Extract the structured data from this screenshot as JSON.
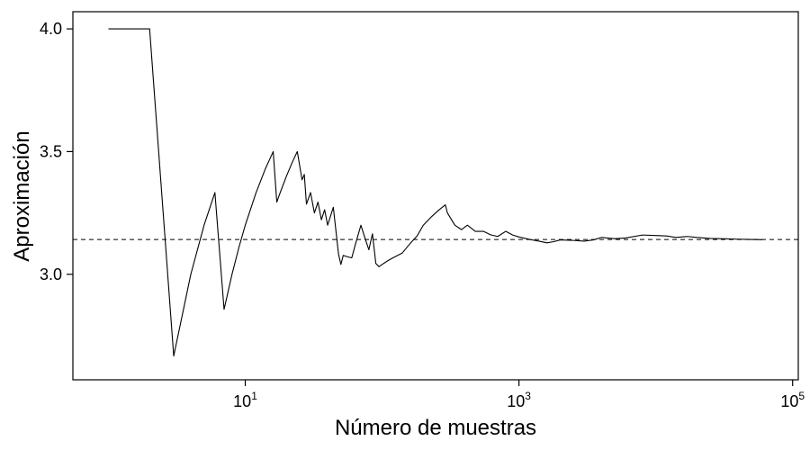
{
  "chart_data": {
    "type": "line",
    "xlabel": "Número de muestras",
    "ylabel": "Aproximación",
    "x_scale": "log10",
    "xlim": [
      0.55,
      110000
    ],
    "ylim": [
      2.57,
      4.07
    ],
    "x_ticks": [
      {
        "value": 10,
        "base": "10",
        "exp": "1"
      },
      {
        "value": 1000,
        "base": "10",
        "exp": "3"
      },
      {
        "value": 100000,
        "base": "10",
        "exp": "5"
      }
    ],
    "y_ticks": [
      {
        "value": 3.0,
        "label": "3.0"
      },
      {
        "value": 3.5,
        "label": "3.5"
      },
      {
        "value": 4.0,
        "label": "4.0"
      }
    ],
    "reference_line": {
      "y": 3.14159,
      "style": "dashed"
    },
    "series": [
      {
        "x": [
          1,
          2,
          3,
          4,
          5,
          6,
          7,
          8,
          9,
          10,
          12,
          14,
          16,
          17,
          18,
          20,
          22,
          24,
          26,
          27,
          28,
          30,
          32,
          34,
          36,
          38,
          40,
          44,
          48,
          50,
          52,
          56,
          60,
          64,
          70,
          75,
          80,
          85,
          90,
          95,
          100,
          110,
          120,
          130,
          140,
          160,
          180,
          200,
          230,
          260,
          290,
          300,
          340,
          380,
          420,
          480,
          550,
          620,
          700,
          800,
          900,
          1000,
          1200,
          1400,
          1600,
          1800,
          2000,
          2500,
          3000,
          3500,
          4000,
          5000,
          6000,
          8000,
          10000,
          12000,
          14000,
          17000,
          20000,
          25000,
          30000,
          40000,
          50000,
          60000
        ],
        "y": [
          4.0,
          4.0,
          2.667,
          3.0,
          3.2,
          3.333,
          2.857,
          3.0,
          3.111,
          3.2,
          3.333,
          3.429,
          3.5,
          3.294,
          3.333,
          3.4,
          3.455,
          3.5,
          3.385,
          3.407,
          3.286,
          3.333,
          3.25,
          3.294,
          3.222,
          3.263,
          3.2,
          3.273,
          3.083,
          3.04,
          3.077,
          3.071,
          3.067,
          3.125,
          3.2,
          3.147,
          3.1,
          3.165,
          3.044,
          3.031,
          3.04,
          3.055,
          3.067,
          3.077,
          3.086,
          3.125,
          3.156,
          3.2,
          3.235,
          3.262,
          3.283,
          3.25,
          3.2,
          3.182,
          3.2,
          3.175,
          3.175,
          3.161,
          3.154,
          3.175,
          3.16,
          3.152,
          3.142,
          3.135,
          3.128,
          3.133,
          3.14,
          3.138,
          3.135,
          3.14,
          3.15,
          3.145,
          3.148,
          3.16,
          3.158,
          3.156,
          3.15,
          3.154,
          3.15,
          3.146,
          3.145,
          3.143,
          3.142,
          3.141
        ]
      }
    ]
  }
}
